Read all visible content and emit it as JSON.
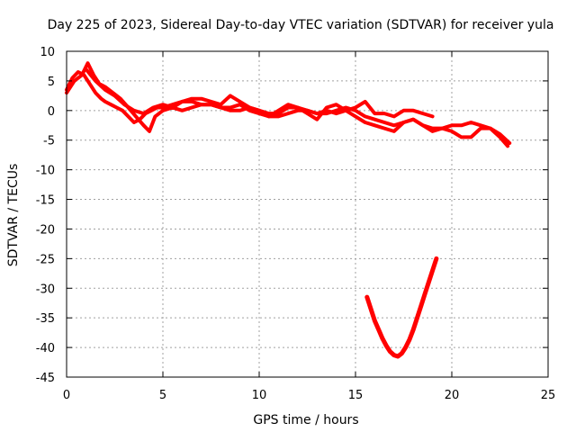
{
  "chart_data": {
    "type": "line",
    "title": "Day 225 of 2023, Sidereal Day-to-day VTEC variation (SDTVAR) for receiver yula",
    "xlabel": "GPS time / hours",
    "ylabel": "SDTVAR / TECUs",
    "xlim": [
      0,
      25
    ],
    "ylim": [
      -45,
      10
    ],
    "xticks": [
      0,
      5,
      10,
      15,
      20,
      25
    ],
    "yticks": [
      10,
      5,
      0,
      -5,
      -10,
      -15,
      -20,
      -25,
      -30,
      -35,
      -40,
      -45
    ],
    "grid": true,
    "color": "#ff0000",
    "series": [
      {
        "name": "sdtvar-main-1",
        "x": [
          0.0,
          0.3,
          0.6,
          0.9,
          1.2,
          1.5,
          1.8,
          2.0,
          2.3,
          2.6,
          2.9,
          3.2,
          3.5,
          3.8,
          4.1,
          4.4,
          4.7,
          5.0,
          5.5,
          6.0,
          6.5,
          7.0,
          7.5,
          8.0,
          8.5,
          9.0,
          9.5,
          10.0,
          10.5,
          11.0,
          11.5,
          12.0,
          12.5,
          13.0,
          13.5,
          14.0,
          14.5,
          15.0,
          15.5,
          16.0,
          16.5,
          17.0,
          17.5,
          18.0,
          18.5,
          19.0,
          19.5,
          20.0,
          20.5,
          21.0,
          21.5,
          22.0,
          22.5,
          23.0
        ],
        "y": [
          3.5,
          5.5,
          6.5,
          6.0,
          4.5,
          3.0,
          2.0,
          1.5,
          1.0,
          0.5,
          0.0,
          -1.0,
          -2.0,
          -1.5,
          -0.5,
          0.0,
          0.5,
          0.5,
          1.0,
          1.5,
          1.5,
          1.0,
          1.0,
          0.5,
          0.5,
          1.0,
          0.0,
          -0.5,
          -1.0,
          -1.0,
          -0.5,
          0.0,
          0.0,
          -0.5,
          -0.5,
          0.0,
          0.5,
          0.0,
          -1.0,
          -1.5,
          -2.0,
          -2.5,
          -2.0,
          -1.5,
          -2.5,
          -3.0,
          -3.0,
          -2.5,
          -2.5,
          -2.0,
          -2.5,
          -3.0,
          -4.0,
          -5.5
        ]
      },
      {
        "name": "sdtvar-main-2",
        "x": [
          0.0,
          0.4,
          0.8,
          1.1,
          1.4,
          1.7,
          2.0,
          2.4,
          2.8,
          3.2,
          3.6,
          4.0,
          4.3,
          4.6,
          5.0,
          5.5,
          6.0,
          6.5,
          7.0,
          7.5,
          8.0,
          8.5,
          9.0,
          9.5,
          10.0,
          10.5,
          11.0,
          11.5,
          12.0,
          12.5,
          13.0,
          13.5,
          14.0,
          14.5,
          15.0,
          15.5,
          16.0,
          16.5,
          17.0,
          17.5,
          18.0,
          18.5,
          19.0,
          19.5,
          20.0,
          20.5,
          21.0,
          21.5,
          22.0,
          22.5,
          22.9
        ],
        "y": [
          3.0,
          5.0,
          6.0,
          8.0,
          6.0,
          4.5,
          4.0,
          3.0,
          2.0,
          0.5,
          -1.0,
          -2.5,
          -3.5,
          -1.0,
          0.0,
          0.5,
          0.0,
          0.5,
          1.0,
          1.0,
          0.5,
          0.0,
          0.0,
          0.5,
          0.0,
          -0.5,
          -0.5,
          0.5,
          0.5,
          0.0,
          -0.5,
          0.0,
          -0.5,
          0.0,
          -1.0,
          -2.0,
          -2.5,
          -3.0,
          -3.5,
          -2.0,
          -1.5,
          -2.5,
          -3.5,
          -3.0,
          -3.5,
          -4.5,
          -4.5,
          -3.0,
          -3.0,
          -4.5,
          -6.0
        ]
      },
      {
        "name": "sdtvar-main-3",
        "x": [
          1.0,
          1.5,
          2.0,
          2.5,
          3.0,
          3.5,
          4.0,
          4.5,
          5.0,
          5.5,
          6.0,
          6.5,
          7.0,
          7.5,
          8.0,
          8.5,
          9.0,
          9.5,
          10.0,
          10.5,
          11.0,
          11.5,
          12.0,
          12.5,
          13.0,
          13.5,
          14.0,
          14.5,
          15.0,
          15.5,
          16.0,
          16.5,
          17.0,
          17.5,
          18.0,
          18.5,
          19.0
        ],
        "y": [
          7.0,
          5.0,
          3.5,
          2.5,
          1.0,
          0.0,
          -0.5,
          0.5,
          1.0,
          0.5,
          1.5,
          2.0,
          2.0,
          1.5,
          1.0,
          2.5,
          1.5,
          0.5,
          0.0,
          -1.0,
          0.0,
          1.0,
          0.5,
          -0.5,
          -1.5,
          0.5,
          1.0,
          0.0,
          0.5,
          1.5,
          -0.5,
          -0.5,
          -1.0,
          0.0,
          0.0,
          -0.5,
          -1.0
        ]
      },
      {
        "name": "sdtvar-lower-arc",
        "x": [
          15.6,
          15.8,
          16.0,
          16.2,
          16.4,
          16.6,
          16.8,
          17.0,
          17.2,
          17.4,
          17.6,
          17.8,
          18.0,
          18.2,
          18.4,
          18.6,
          18.8,
          19.0,
          19.2
        ],
        "y": [
          -31.5,
          -33.5,
          -35.5,
          -37.0,
          -38.5,
          -39.7,
          -40.7,
          -41.3,
          -41.5,
          -41.0,
          -40.0,
          -38.7,
          -37.0,
          -35.0,
          -33.0,
          -31.0,
          -29.0,
          -27.0,
          -25.0
        ]
      }
    ]
  }
}
